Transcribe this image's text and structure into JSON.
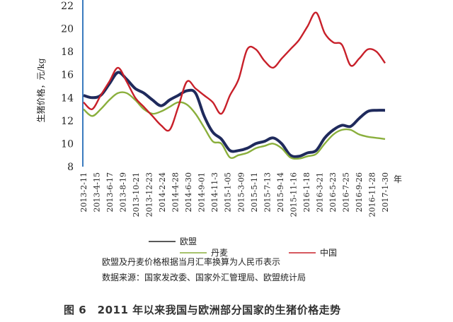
{
  "chart_data": {
    "type": "line",
    "ylabel": "生猪价格，元/kg",
    "xlabel": "年",
    "ylim": [
      8,
      22
    ],
    "yticks": [
      8,
      10,
      12,
      14,
      16,
      18,
      20,
      22
    ],
    "grid": false,
    "legend": "bottom",
    "xtick_labels": [
      "2013-2-11",
      "2013-4-15",
      "2013-6-17",
      "2013-8-19",
      "2013-10-21",
      "2013-12-23",
      "2014-2-24",
      "2014-4-28",
      "2014-6-30",
      "2014-9-01",
      "2014-11-3",
      "2015-1-05",
      "2015-3-09",
      "2015-5-11",
      "2015-7-13",
      "2015-9-14",
      "2015-11-16",
      "2016-1-18",
      "2016-3-21",
      "2016-5-23",
      "2016-7-25",
      "2016-9-26",
      "2016-11-28",
      "2017-1-30"
    ],
    "series": [
      {
        "name": "欧盟",
        "color": "#1f2a5c",
        "values": [
          14.2,
          14.0,
          14.2,
          15.2,
          16.2,
          15.6,
          14.8,
          14.4,
          13.8,
          13.3,
          13.8,
          14.2,
          14.6,
          14.4,
          12.4,
          11.0,
          10.4,
          9.4,
          9.4,
          9.6,
          10.0,
          10.2,
          10.5,
          10.0,
          9.0,
          8.9,
          9.2,
          9.4,
          10.5,
          11.2,
          11.6,
          11.5,
          12.2,
          12.8,
          12.9,
          12.9
        ]
      },
      {
        "name": "丹麦",
        "color": "#8aaf3c",
        "values": [
          13.0,
          12.4,
          13.0,
          13.8,
          14.4,
          14.4,
          13.8,
          13.0,
          12.6,
          12.8,
          13.2,
          13.6,
          13.4,
          12.6,
          11.4,
          10.2,
          10.0,
          8.8,
          9.0,
          9.2,
          9.6,
          9.8,
          10.0,
          9.6,
          8.8,
          8.7,
          8.9,
          9.1,
          10.0,
          10.8,
          11.2,
          11.2,
          10.8,
          10.6,
          10.5,
          10.4
        ]
      },
      {
        "name": "中国",
        "color": "#c8202a",
        "values": [
          13.6,
          13.0,
          14.2,
          15.4,
          16.6,
          15.4,
          14.0,
          13.2,
          12.4,
          11.6,
          11.2,
          13.2,
          15.4,
          14.8,
          14.2,
          13.6,
          12.6,
          14.2,
          15.6,
          18.2,
          18.2,
          17.2,
          16.6,
          17.4,
          18.2,
          19.0,
          20.2,
          21.4,
          19.6,
          18.8,
          18.6,
          16.8,
          17.4,
          18.2,
          18.0,
          17.0
        ]
      }
    ]
  },
  "notes": {
    "conversion": "欧盟及丹麦价格根据当月汇率换算为人民币表示",
    "source": "数据来源：国家发改委、国家外汇管理局、欧盟统计局"
  },
  "caption": "图 6　2011 年以来我国与欧洲部分国家的生猪价格走势"
}
